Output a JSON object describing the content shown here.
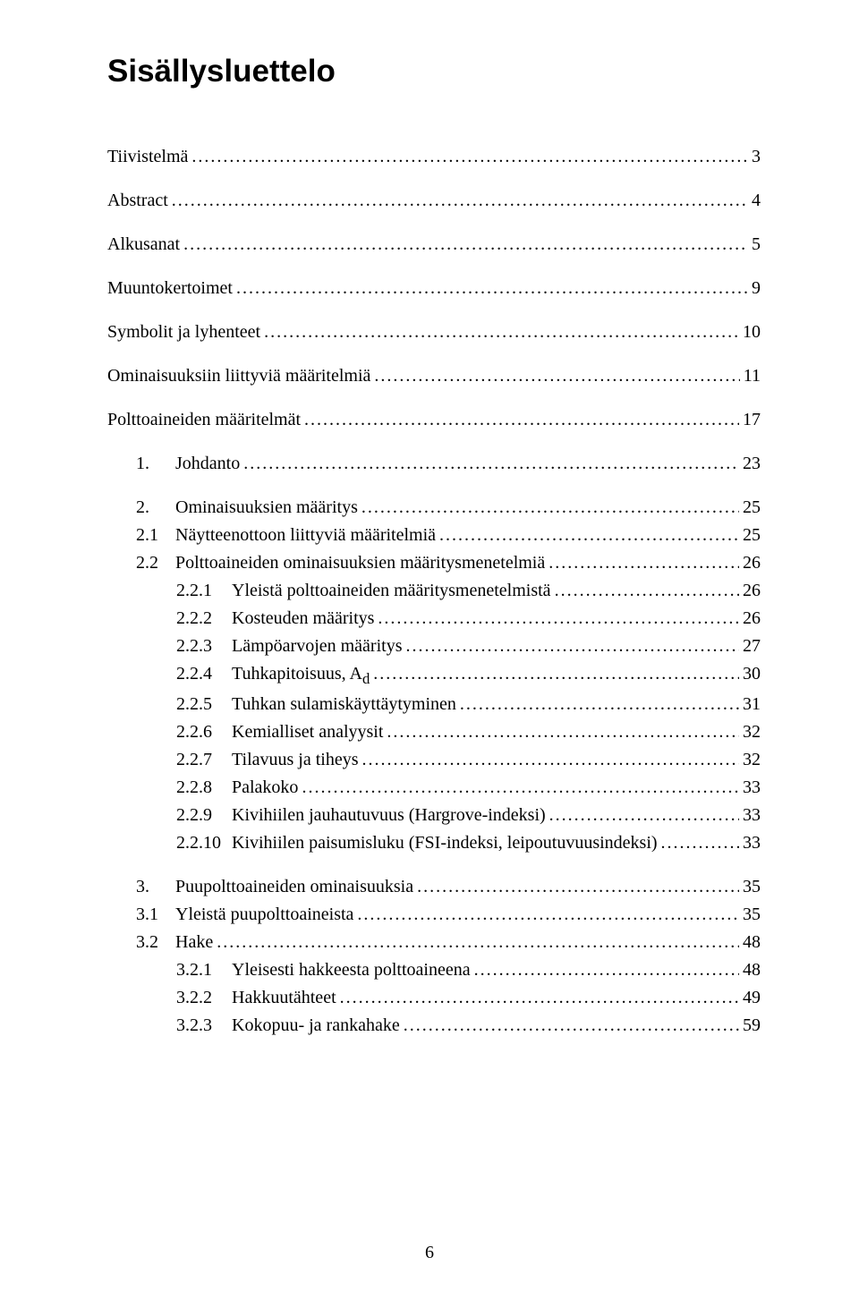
{
  "page": {
    "title": "Sisällysluettelo",
    "footer": "6"
  },
  "toc": {
    "items": [
      {
        "label": "Tiivistelmä",
        "page": "3",
        "level": 0,
        "spaced": true
      },
      {
        "label": "Abstract",
        "page": "4",
        "level": 0,
        "spaced": true
      },
      {
        "label": "Alkusanat",
        "page": "5",
        "level": 0,
        "spaced": true
      },
      {
        "label": "Muuntokertoimet",
        "page": "9",
        "level": 0,
        "spaced": true
      },
      {
        "label": "Symbolit ja lyhenteet",
        "page": "10",
        "level": 0,
        "spaced": true
      },
      {
        "label": "Ominaisuuksiin liittyviä määritelmiä",
        "page": "11",
        "level": 0,
        "spaced": true
      },
      {
        "label": "Polttoaineiden määritelmät",
        "page": "17",
        "level": 0,
        "spaced": true
      },
      {
        "num": "1.",
        "label": "Johdanto",
        "page": "23",
        "level": 1,
        "numClass": "num-w1",
        "spaced": true
      },
      {
        "num": "2.",
        "label": "Ominaisuuksien määritys",
        "page": "25",
        "level": 1,
        "numClass": "num-w1",
        "spaced": true
      },
      {
        "num": "2.1",
        "label": "Näytteenottoon liittyviä määritelmiä",
        "page": "25",
        "level": 2,
        "numClass": "num-w2"
      },
      {
        "num": "2.2",
        "label": "Polttoaineiden ominaisuuksien määritysmenetelmiä",
        "page": "26",
        "level": 2,
        "numClass": "num-w2"
      },
      {
        "num": "2.2.1",
        "label": "Yleistä polttoaineiden määritysmenetelmistä",
        "page": "26",
        "level": 3,
        "numClass": "num-w3"
      },
      {
        "num": "2.2.2",
        "label": "Kosteuden määritys",
        "page": "26",
        "level": 3,
        "numClass": "num-w3"
      },
      {
        "num": "2.2.3",
        "label": "Lämpöarvojen määritys",
        "page": "27",
        "level": 3,
        "numClass": "num-w3"
      },
      {
        "num": "2.2.4",
        "label": "Tuhkapitoisuus, A",
        "sub": "d",
        "page": "30",
        "level": 3,
        "numClass": "num-w3"
      },
      {
        "num": "2.2.5",
        "label": "Tuhkan sulamiskäyttäytyminen",
        "page": "31",
        "level": 3,
        "numClass": "num-w3"
      },
      {
        "num": "2.2.6",
        "label": "Kemialliset analyysit",
        "page": "32",
        "level": 3,
        "numClass": "num-w3"
      },
      {
        "num": "2.2.7",
        "label": "Tilavuus ja tiheys",
        "page": "32",
        "level": 3,
        "numClass": "num-w3"
      },
      {
        "num": "2.2.8",
        "label": "Palakoko",
        "page": "33",
        "level": 3,
        "numClass": "num-w3"
      },
      {
        "num": "2.2.9",
        "label": "Kivihiilen jauhautuvuus (Hargrove-indeksi)",
        "page": "33",
        "level": 3,
        "numClass": "num-w3"
      },
      {
        "num": "2.2.10",
        "label": "Kivihiilen paisumisluku (FSI-indeksi, leipoutuvuusindeksi)",
        "page": "33",
        "level": 3,
        "numClass": "num-w3"
      },
      {
        "num": "3.",
        "label": "Puupolttoaineiden ominaisuuksia",
        "page": "35",
        "level": 1,
        "numClass": "num-w1",
        "spaced": true
      },
      {
        "num": "3.1",
        "label": "Yleistä puupolttoaineista",
        "page": "35",
        "level": 2,
        "numClass": "num-w2"
      },
      {
        "num": "3.2",
        "label": "Hake",
        "page": "48",
        "level": 2,
        "numClass": "num-w2"
      },
      {
        "num": "3.2.1",
        "label": "Yleisesti hakkeesta polttoaineena",
        "page": "48",
        "level": 3,
        "numClass": "num-w3"
      },
      {
        "num": "3.2.2",
        "label": "Hakkuutähteet",
        "page": "49",
        "level": 3,
        "numClass": "num-w3"
      },
      {
        "num": "3.2.3",
        "label": "Kokopuu- ja rankahake",
        "page": "59",
        "level": 3,
        "numClass": "num-w3"
      }
    ]
  }
}
